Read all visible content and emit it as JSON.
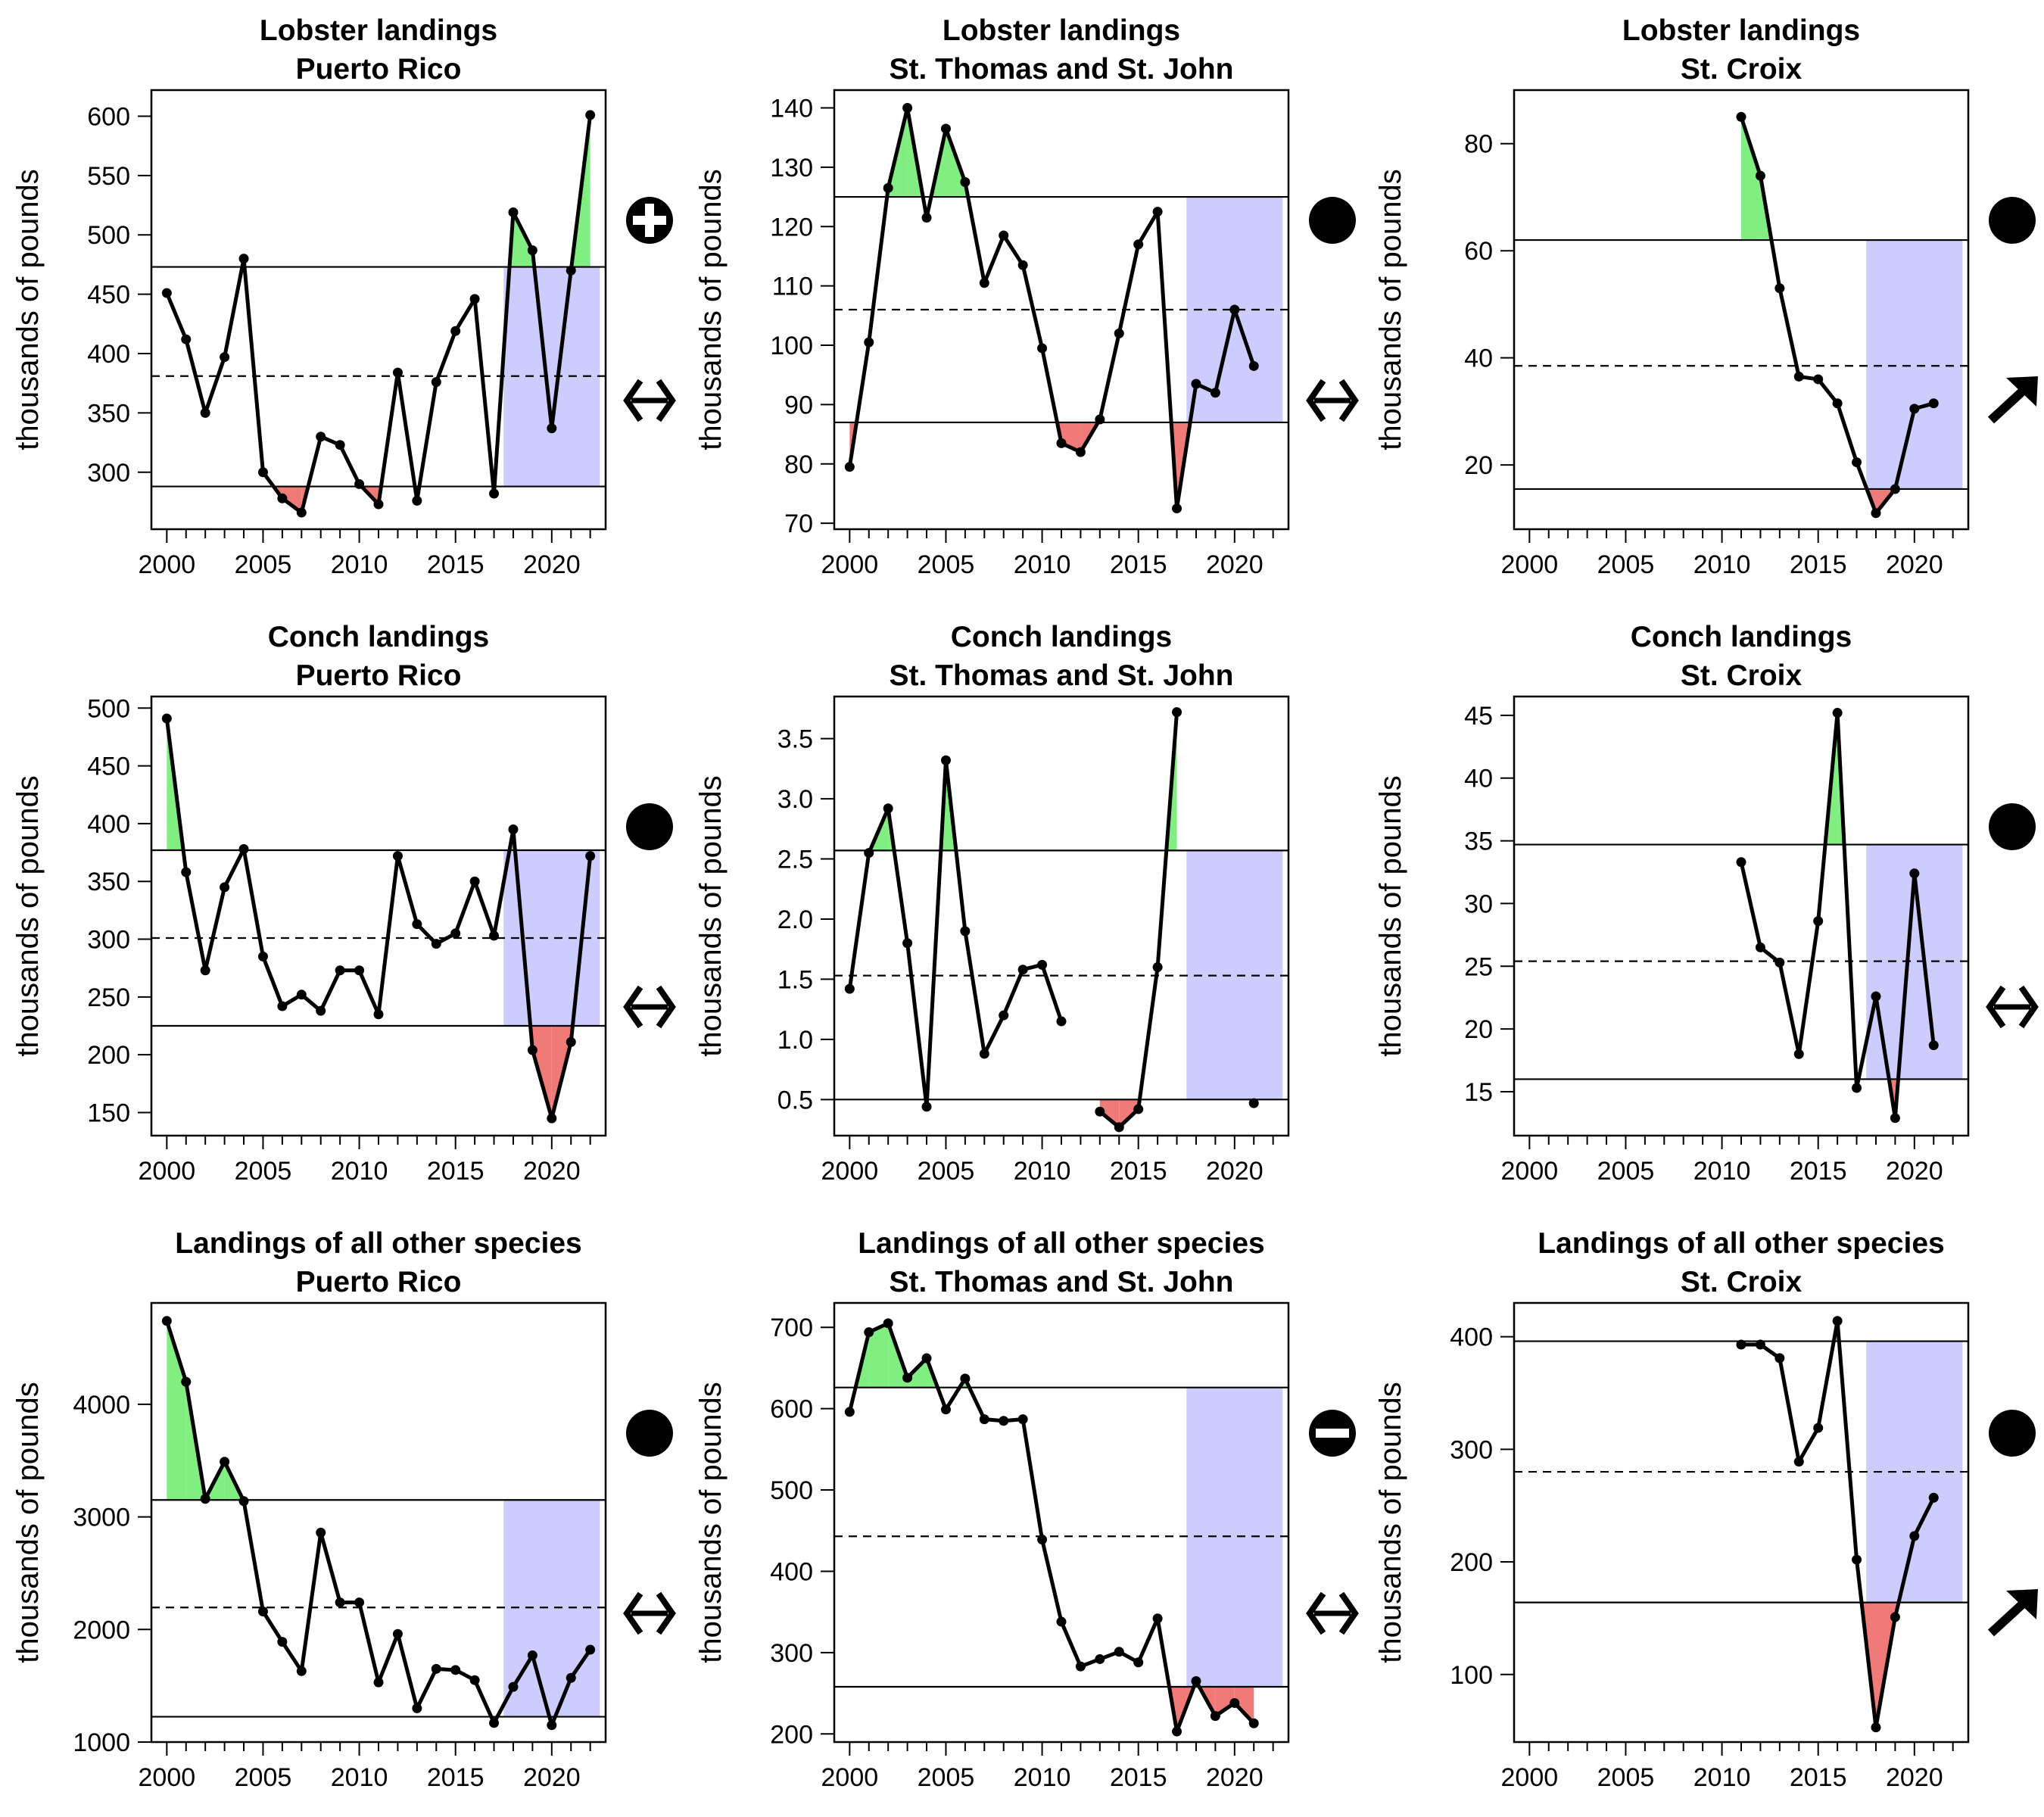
{
  "chart_data": [
    {
      "type": "line",
      "title": "Lobster landings",
      "subtitle": "Puerto Rico",
      "ylabel": "thousands of pounds",
      "xlabel": "",
      "xlim": [
        1999.2,
        2022.8
      ],
      "ylim": [
        252,
        622
      ],
      "yticks": [
        300,
        350,
        400,
        450,
        500,
        550,
        600
      ],
      "mean": 381,
      "upper": 473,
      "lower": 288,
      "status_icon": "plus-circle-icon",
      "trend_icon": "double-arrow-horizontal-icon",
      "series": [
        {
          "x": [
            2000,
            2001,
            2002,
            2003,
            2004,
            2005,
            2006,
            2007,
            2008,
            2009,
            2010,
            2011,
            2012,
            2013,
            2014,
            2015,
            2016,
            2017,
            2018,
            2019,
            2020,
            2021,
            2022
          ],
          "y": [
            451,
            412,
            350,
            397,
            480,
            300,
            278,
            266,
            330,
            323,
            290,
            273,
            384,
            276,
            376,
            419,
            446,
            282,
            519,
            487,
            337,
            470,
            601
          ]
        }
      ]
    },
    {
      "type": "line",
      "title": "Lobster landings",
      "subtitle": "St. Thomas and St. John",
      "ylabel": "thousands of pounds",
      "xlabel": "",
      "xlim": [
        1999.2,
        2022.8
      ],
      "ylim": [
        69,
        143
      ],
      "yticks": [
        70,
        80,
        90,
        100,
        110,
        120,
        130,
        140
      ],
      "mean": 106,
      "upper": 125,
      "lower": 87,
      "status_icon": "filled-circle-icon",
      "trend_icon": "double-arrow-horizontal-icon",
      "series": [
        {
          "x": [
            2000,
            2001,
            2002,
            2003,
            2004,
            2005,
            2006,
            2007,
            2008,
            2009,
            2010,
            2011,
            2012,
            2013,
            2014,
            2015,
            2016,
            2017,
            2018,
            2019,
            2020,
            2021
          ],
          "y": [
            79.5,
            100.5,
            126.5,
            140,
            121.5,
            136.5,
            127.5,
            110.5,
            118.5,
            113.5,
            99.5,
            83.5,
            82,
            87.5,
            102,
            117,
            122.5,
            72.5,
            93.5,
            92,
            106,
            96.5
          ]
        }
      ]
    },
    {
      "type": "line",
      "title": "Lobster landings",
      "subtitle": "St. Croix",
      "ylabel": "thousands of pounds",
      "xlabel": "",
      "xlim": [
        1999.2,
        2022.8
      ],
      "ylim": [
        8,
        90
      ],
      "yticks": [
        20,
        40,
        60,
        80
      ],
      "mean": 38.5,
      "upper": 62,
      "lower": 15.5,
      "status_icon": "filled-circle-icon",
      "trend_icon": "arrow-up-right-icon",
      "series": [
        {
          "x": [
            2011,
            2012,
            2013,
            2014,
            2015,
            2016,
            2017,
            2018,
            2019,
            2020,
            2021
          ],
          "y": [
            85,
            74,
            53,
            36.5,
            36,
            31.5,
            20.5,
            11,
            15.5,
            30.5,
            31.5
          ]
        }
      ]
    },
    {
      "type": "line",
      "title": "Conch landings",
      "subtitle": "Puerto Rico",
      "ylabel": "thousands of pounds",
      "xlabel": "",
      "xlim": [
        1999.2,
        2022.8
      ],
      "ylim": [
        130,
        510
      ],
      "yticks": [
        150,
        200,
        250,
        300,
        350,
        400,
        450,
        500
      ],
      "mean": 301,
      "upper": 377,
      "lower": 225,
      "status_icon": "filled-circle-icon",
      "trend_icon": "double-arrow-horizontal-icon",
      "series": [
        {
          "x": [
            2000,
            2001,
            2002,
            2003,
            2004,
            2005,
            2006,
            2007,
            2008,
            2009,
            2010,
            2011,
            2012,
            2013,
            2014,
            2015,
            2016,
            2017,
            2018,
            2019,
            2020,
            2021,
            2022
          ],
          "y": [
            491,
            358,
            273,
            345,
            378,
            285,
            242,
            252,
            238,
            273,
            273,
            235,
            372,
            313,
            296,
            305,
            350,
            303,
            395,
            204,
            145,
            211,
            372
          ]
        }
      ]
    },
    {
      "type": "line",
      "title": "Conch landings",
      "subtitle": "St. Thomas and St. John",
      "ylabel": "thousands of pounds",
      "xlabel": "",
      "xlim": [
        1999.2,
        2022.8
      ],
      "ylim": [
        0.2,
        3.85
      ],
      "yticks": [
        0.5,
        1.0,
        1.5,
        2.0,
        2.5,
        3.0,
        3.5
      ],
      "ytick_labels": [
        "0.5",
        "1.0",
        "1.5",
        "2.0",
        "2.5",
        "3.0",
        "3.5"
      ],
      "mean": 1.53,
      "upper": 2.57,
      "lower": 0.5,
      "status_icon": "",
      "trend_icon": "",
      "series": [
        {
          "x": [
            2000,
            2001,
            2002,
            2003,
            2004,
            2005,
            2006,
            2007,
            2008,
            2009,
            2010,
            2011
          ],
          "y": [
            1.42,
            2.55,
            2.92,
            1.8,
            0.44,
            3.32,
            1.9,
            0.88,
            1.2,
            1.58,
            1.62,
            1.15
          ]
        },
        {
          "x": [
            2013,
            2014,
            2015,
            2016,
            2017
          ],
          "y": [
            0.4,
            0.27,
            0.42,
            1.6,
            3.72
          ]
        },
        {
          "x": [
            2021
          ],
          "y": [
            0.47
          ]
        }
      ]
    },
    {
      "type": "line",
      "title": "Conch landings",
      "subtitle": "St. Croix",
      "ylabel": "thousands of pounds",
      "xlabel": "",
      "xlim": [
        1999.2,
        2022.8
      ],
      "ylim": [
        11.5,
        46.5
      ],
      "yticks": [
        15,
        20,
        25,
        30,
        35,
        40,
        45
      ],
      "mean": 25.4,
      "upper": 34.7,
      "lower": 16,
      "status_icon": "filled-circle-icon",
      "trend_icon": "double-arrow-horizontal-icon",
      "series": [
        {
          "x": [
            2011,
            2012,
            2013,
            2014,
            2015,
            2016,
            2017,
            2018,
            2019,
            2020,
            2021
          ],
          "y": [
            33.3,
            26.5,
            25.3,
            18,
            28.6,
            45.2,
            15.3,
            22.6,
            12.9,
            32.4,
            18.7
          ]
        }
      ]
    },
    {
      "type": "line",
      "title": "Landings of all other species",
      "subtitle": "Puerto Rico",
      "ylabel": "thousands of pounds",
      "xlabel": "",
      "xlim": [
        1999.2,
        2022.8
      ],
      "ylim": [
        1000,
        4900
      ],
      "yticks": [
        1000,
        2000,
        3000,
        4000
      ],
      "mean": 2195,
      "upper": 3150,
      "lower": 1225,
      "status_icon": "filled-circle-icon",
      "trend_icon": "double-arrow-horizontal-icon",
      "series": [
        {
          "x": [
            2000,
            2001,
            2002,
            2003,
            2004,
            2005,
            2006,
            2007,
            2008,
            2009,
            2010,
            2011,
            2012,
            2013,
            2014,
            2015,
            2016,
            2017,
            2018,
            2019,
            2020,
            2021,
            2022
          ],
          "y": [
            4740,
            4200,
            3160,
            3490,
            3140,
            2160,
            1890,
            1630,
            2860,
            2240,
            2240,
            1530,
            1960,
            1300,
            1650,
            1640,
            1550,
            1170,
            1490,
            1770,
            1150,
            1570,
            1820
          ]
        }
      ]
    },
    {
      "type": "line",
      "title": "Landings of all other species",
      "subtitle": "St. Thomas and St. John",
      "ylabel": "thousands of pounds",
      "xlabel": "",
      "xlim": [
        1999.2,
        2022.8
      ],
      "ylim": [
        190,
        730
      ],
      "yticks": [
        200,
        300,
        400,
        500,
        600,
        700
      ],
      "mean": 443,
      "upper": 626,
      "lower": 258,
      "status_icon": "minus-circle-icon",
      "trend_icon": "double-arrow-horizontal-icon",
      "series": [
        {
          "x": [
            2000,
            2001,
            2002,
            2003,
            2004,
            2005,
            2006,
            2007,
            2008,
            2009,
            2010,
            2011,
            2012,
            2013,
            2014,
            2015,
            2016,
            2017,
            2018,
            2019,
            2020,
            2021
          ],
          "y": [
            596,
            694,
            705,
            638,
            662,
            599,
            637,
            587,
            585,
            587,
            439,
            338,
            283,
            292,
            301,
            288,
            342,
            203,
            265,
            222,
            238,
            213
          ]
        }
      ]
    },
    {
      "type": "line",
      "title": "Landings of all other species",
      "subtitle": "St. Croix",
      "ylabel": "thousands of pounds",
      "xlabel": "",
      "xlim": [
        1999.2,
        2022.8
      ],
      "ylim": [
        40,
        430
      ],
      "yticks": [
        100,
        200,
        300,
        400
      ],
      "mean": 280,
      "upper": 396,
      "lower": 164,
      "status_icon": "filled-circle-icon",
      "trend_icon": "arrow-up-right-icon",
      "series": [
        {
          "x": [
            2011,
            2012,
            2013,
            2014,
            2015,
            2016,
            2017,
            2018,
            2019,
            2020,
            2021
          ],
          "y": [
            393,
            393,
            381,
            289,
            319,
            414,
            202,
            53,
            151,
            223,
            257
          ]
        }
      ]
    }
  ],
  "xticks": [
    2000,
    2005,
    2010,
    2015,
    2020
  ],
  "shade_x_from": 2017.5,
  "shade_x_to": 2022.5,
  "colors": {
    "above": "#80ee80",
    "below": "#f07a78",
    "recent": "#ccccff",
    "line": "#000000"
  }
}
